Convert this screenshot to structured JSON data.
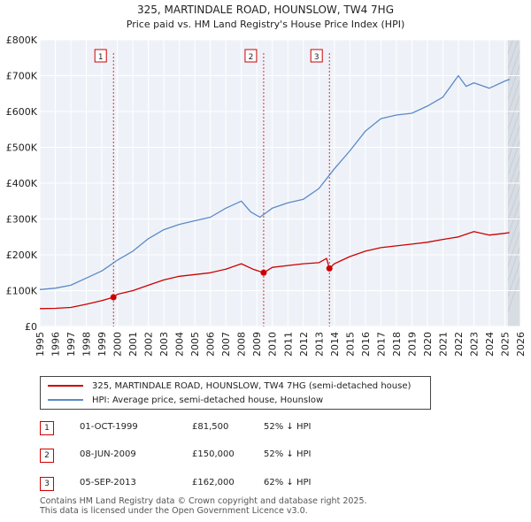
{
  "chart_data": {
    "type": "line",
    "title": "325, MARTINDALE ROAD, HOUNSLOW, TW4 7HG",
    "subtitle": "Price paid vs. HM Land Registry's House Price Index (HPI)",
    "xlim": [
      1995,
      2026
    ],
    "ylim": [
      0,
      800000
    ],
    "x_ticks": [
      "1995",
      "1996",
      "1997",
      "1998",
      "1999",
      "2000",
      "2001",
      "2002",
      "2003",
      "2004",
      "2005",
      "2006",
      "2007",
      "2008",
      "2009",
      "2010",
      "2011",
      "2012",
      "2013",
      "2014",
      "2015",
      "2016",
      "2017",
      "2018",
      "2019",
      "2020",
      "2021",
      "2022",
      "2023",
      "2024",
      "2025",
      "2026"
    ],
    "y_ticks": [
      {
        "value": 0,
        "label": "£0"
      },
      {
        "value": 100000,
        "label": "£100K"
      },
      {
        "value": 200000,
        "label": "£200K"
      },
      {
        "value": 300000,
        "label": "£300K"
      },
      {
        "value": 400000,
        "label": "£400K"
      },
      {
        "value": 500000,
        "label": "£500K"
      },
      {
        "value": 600000,
        "label": "£600K"
      },
      {
        "value": 700000,
        "label": "£700K"
      },
      {
        "value": 800000,
        "label": "£800K"
      }
    ],
    "grid": true,
    "shaded_from": 2025.2,
    "series": [
      {
        "name": "325, MARTINDALE ROAD, HOUNSLOW, TW4 7HG (semi-detached house)",
        "color": "#cc0000",
        "points": [
          [
            1995,
            50000
          ],
          [
            1996,
            50500
          ],
          [
            1997,
            53000
          ],
          [
            1998,
            62000
          ],
          [
            1999,
            72000
          ],
          [
            1999.75,
            81500
          ],
          [
            2000,
            90000
          ],
          [
            2001,
            100000
          ],
          [
            2002,
            115000
          ],
          [
            2003,
            130000
          ],
          [
            2004,
            140000
          ],
          [
            2005,
            145000
          ],
          [
            2006,
            150000
          ],
          [
            2007,
            160000
          ],
          [
            2008,
            175000
          ],
          [
            2008.75,
            160000
          ],
          [
            2009.44,
            150000
          ],
          [
            2010,
            165000
          ],
          [
            2011,
            170000
          ],
          [
            2012,
            175000
          ],
          [
            2013,
            178000
          ],
          [
            2013.5,
            190000
          ],
          [
            2013.68,
            162000
          ],
          [
            2014,
            175000
          ],
          [
            2015,
            195000
          ],
          [
            2016,
            210000
          ],
          [
            2017,
            220000
          ],
          [
            2018,
            225000
          ],
          [
            2019,
            230000
          ],
          [
            2020,
            235000
          ],
          [
            2021,
            243000
          ],
          [
            2022,
            250000
          ],
          [
            2023,
            265000
          ],
          [
            2024,
            255000
          ],
          [
            2025,
            260000
          ],
          [
            2025.3,
            262000
          ]
        ]
      },
      {
        "name": "HPI: Average price, semi-detached house, Hounslow",
        "color": "#5b8ac6",
        "points": [
          [
            1995,
            103000
          ],
          [
            1996,
            107000
          ],
          [
            1997,
            115000
          ],
          [
            1998,
            135000
          ],
          [
            1999,
            155000
          ],
          [
            2000,
            185000
          ],
          [
            2001,
            210000
          ],
          [
            2002,
            245000
          ],
          [
            2003,
            270000
          ],
          [
            2004,
            285000
          ],
          [
            2005,
            295000
          ],
          [
            2006,
            305000
          ],
          [
            2007,
            330000
          ],
          [
            2008,
            350000
          ],
          [
            2008.6,
            320000
          ],
          [
            2009.2,
            305000
          ],
          [
            2010,
            330000
          ],
          [
            2011,
            345000
          ],
          [
            2012,
            355000
          ],
          [
            2013,
            385000
          ],
          [
            2014,
            440000
          ],
          [
            2015,
            490000
          ],
          [
            2016,
            545000
          ],
          [
            2017,
            580000
          ],
          [
            2018,
            590000
          ],
          [
            2019,
            595000
          ],
          [
            2020,
            615000
          ],
          [
            2021,
            640000
          ],
          [
            2022,
            700000
          ],
          [
            2022.5,
            670000
          ],
          [
            2023,
            680000
          ],
          [
            2024,
            665000
          ],
          [
            2025,
            685000
          ],
          [
            2025.3,
            690000
          ]
        ]
      }
    ],
    "sales": [
      {
        "num": "1",
        "x": 1999.75,
        "value": 81500
      },
      {
        "num": "2",
        "x": 2009.44,
        "value": 150000
      },
      {
        "num": "3",
        "x": 2013.68,
        "value": 162000
      }
    ]
  },
  "legend": {
    "property_label": "325, MARTINDALE ROAD, HOUNSLOW, TW4 7HG (semi-detached house)",
    "hpi_label": "HPI: Average price, semi-detached house, Hounslow"
  },
  "sales_table": [
    {
      "num": "1",
      "date": "01-OCT-1999",
      "price": "£81,500",
      "hpi": "52% ↓ HPI"
    },
    {
      "num": "2",
      "date": "08-JUN-2009",
      "price": "£150,000",
      "hpi": "52% ↓ HPI"
    },
    {
      "num": "3",
      "date": "05-SEP-2013",
      "price": "£162,000",
      "hpi": "62% ↓ HPI"
    }
  ],
  "footer": {
    "line1": "Contains HM Land Registry data © Crown copyright and database right 2025.",
    "line2": "This data is licensed under the Open Government Licence v3.0."
  },
  "colors": {
    "property": "#cc0000",
    "hpi": "#5b8ac6",
    "plot_bg": "#eef2f8"
  }
}
